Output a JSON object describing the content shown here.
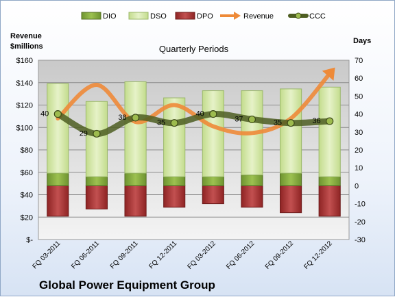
{
  "chart_data": {
    "type": "bar",
    "subtitle": "Quarterly Periods",
    "footer_title": "Global Power Equipment Group",
    "left_axis_title": [
      "Revenue",
      "$millions"
    ],
    "right_axis_title": "Days",
    "categories": [
      "FQ 03-2011",
      "FQ 06-2011",
      "FQ 09-2011",
      "FQ 12-2011",
      "FQ 03-2012",
      "FQ 06-2012",
      "FQ 09-2012",
      "FQ 12-2012"
    ],
    "left_axis": {
      "ylim": [
        0,
        160
      ],
      "tick_labels": [
        "$-",
        "$20",
        "$40",
        "$60",
        "$80",
        "$100",
        "$120",
        "$140",
        "$160"
      ]
    },
    "right_axis": {
      "ylim": [
        -30,
        70
      ],
      "tick_labels": [
        "-30",
        "-20",
        "-10",
        "0",
        "10",
        "20",
        "30",
        "40",
        "50",
        "60",
        "70"
      ]
    },
    "series": [
      {
        "name": "DIO",
        "axis": "right",
        "color": "#7fa437",
        "values": [
          7,
          5,
          7,
          5,
          5,
          6,
          7,
          5
        ]
      },
      {
        "name": "DSO",
        "axis": "right",
        "color": "#d6e8a8",
        "values": [
          50,
          42,
          51,
          44,
          48,
          47,
          47,
          50
        ]
      },
      {
        "name": "DPO",
        "axis": "right",
        "color": "#a83232",
        "values": [
          17,
          13,
          17,
          12,
          10,
          12,
          15,
          17
        ]
      },
      {
        "name": "Revenue",
        "axis": "left",
        "color": "#ee8a38",
        "values": [
          108,
          138,
          105,
          120,
          101,
          95,
          108,
          148
        ]
      },
      {
        "name": "CCC",
        "axis": "right",
        "color": "#5b6b2a",
        "values": [
          40,
          29,
          38,
          35,
          40,
          37,
          35,
          36
        ]
      }
    ],
    "ccc_data_labels": [
      "40",
      "29",
      "38",
      "35",
      "40",
      "37",
      "35",
      "36"
    ],
    "legend_position": "top",
    "grid": true
  }
}
